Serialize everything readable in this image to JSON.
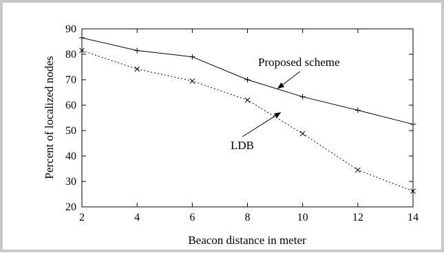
{
  "chart_data": {
    "type": "line",
    "title": "",
    "xlabel": "Beacon distance in meter",
    "ylabel": "Percent of localized nodes",
    "xlim": [
      2,
      14
    ],
    "ylim": [
      20,
      90
    ],
    "x_ticks": [
      2,
      4,
      6,
      8,
      10,
      12,
      14
    ],
    "y_ticks": [
      20,
      30,
      40,
      50,
      60,
      70,
      80,
      90
    ],
    "grid": false,
    "legend": "none (inline arrow annotations)",
    "x": [
      2,
      4,
      6,
      8,
      10,
      12,
      14
    ],
    "series": [
      {
        "name": "Proposed scheme",
        "line_style": "solid",
        "marker": "plus",
        "color": "#000000",
        "values": [
          86.5,
          81.5,
          79,
          70,
          63.3,
          58,
          52.5
        ]
      },
      {
        "name": "LDB",
        "line_style": "dotted",
        "marker": "x",
        "color": "#000000",
        "values": [
          81.5,
          74.2,
          69.5,
          62,
          48.8,
          34.5,
          26.2
        ]
      }
    ],
    "annotations": [
      {
        "text": "Proposed scheme",
        "points_to_series": "Proposed scheme",
        "arrow_tip": [
          9.1,
          66.6
        ]
      },
      {
        "text": "LDB",
        "points_to_series": "LDB",
        "arrow_tip": [
          9.2,
          57.1
        ]
      }
    ]
  }
}
